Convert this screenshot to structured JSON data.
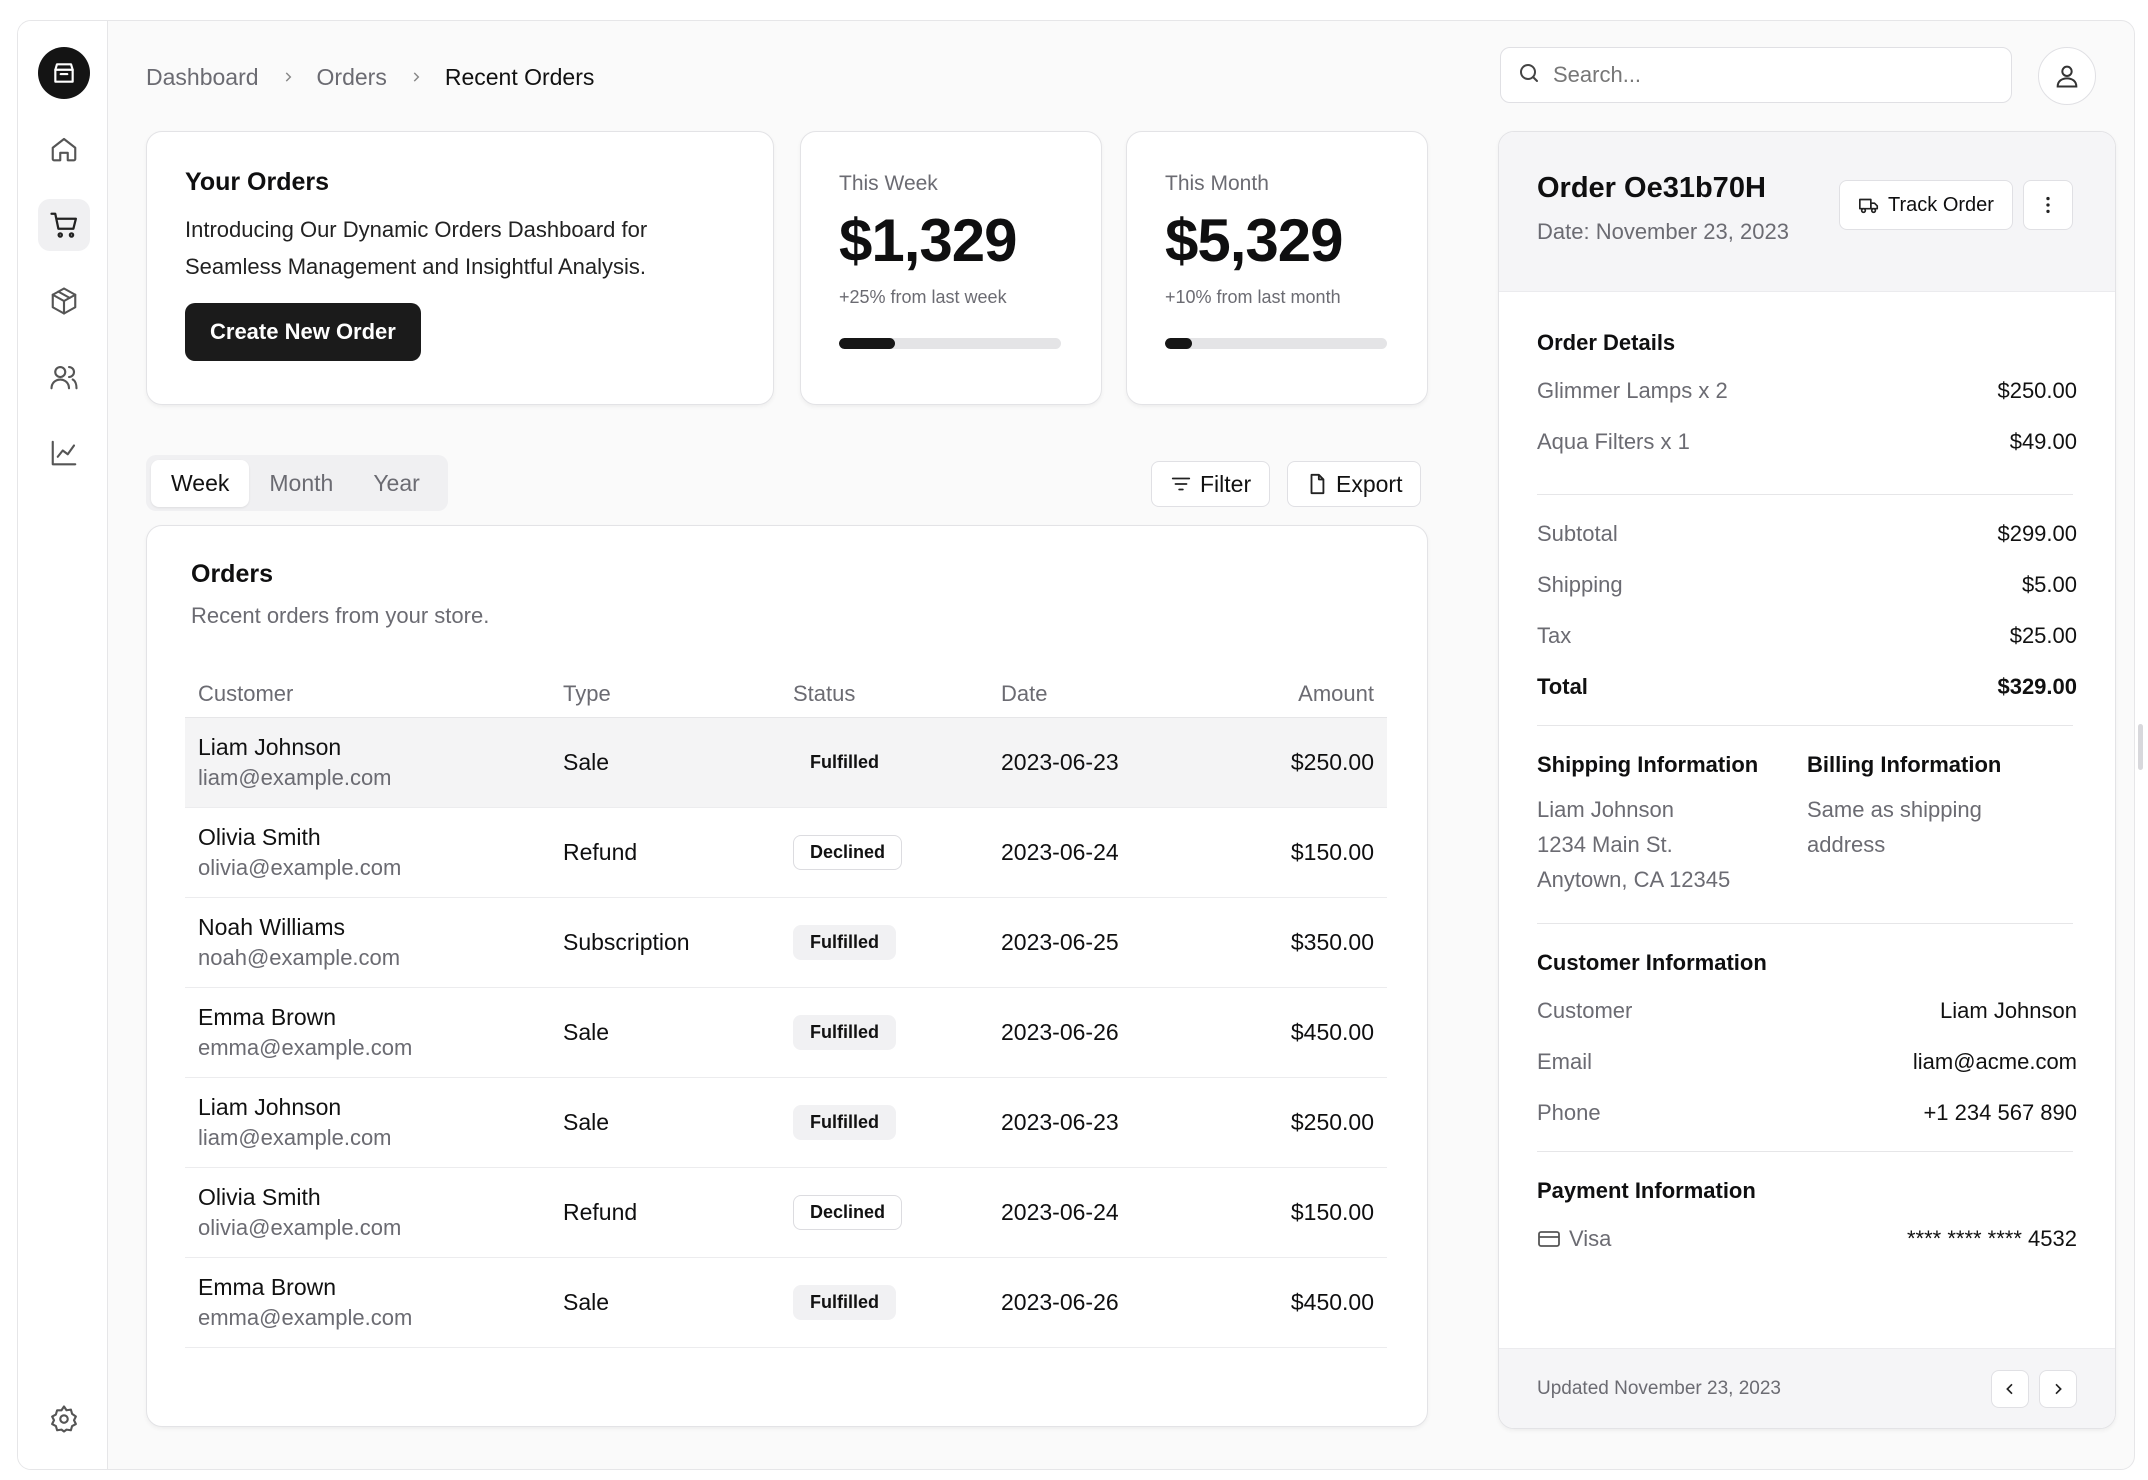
{
  "breadcrumb": [
    "Dashboard",
    "Orders",
    "Recent Orders"
  ],
  "search": {
    "placeholder": "Search..."
  },
  "sidebar": {
    "icons": [
      "store-icon",
      "home-icon",
      "cart-icon",
      "package-icon",
      "users-icon",
      "chart-icon",
      "settings-icon"
    ],
    "active": "cart-icon"
  },
  "intro": {
    "title": "Your Orders",
    "description": "Introducing Our Dynamic Orders Dashboard for Seamless Management and Insightful Analysis.",
    "button": "Create New Order"
  },
  "stats": [
    {
      "label": "This Week",
      "value": "$1,329",
      "change": "+25% from last week",
      "progress": 0.25
    },
    {
      "label": "This Month",
      "value": "$5,329",
      "change": "+10% from last month",
      "progress": 0.12
    }
  ],
  "tabs": [
    "Week",
    "Month",
    "Year"
  ],
  "active_tab": "Week",
  "actions": {
    "filter": "Filter",
    "export": "Export"
  },
  "orders": {
    "title": "Orders",
    "description": "Recent orders from your store.",
    "columns": [
      "Customer",
      "Type",
      "Status",
      "Date",
      "Amount"
    ],
    "rows": [
      {
        "name": "Liam Johnson",
        "email": "liam@example.com",
        "type": "Sale",
        "status": "Fulfilled",
        "date": "2023-06-23",
        "amount": "$250.00"
      },
      {
        "name": "Olivia Smith",
        "email": "olivia@example.com",
        "type": "Refund",
        "status": "Declined",
        "date": "2023-06-24",
        "amount": "$150.00"
      },
      {
        "name": "Noah Williams",
        "email": "noah@example.com",
        "type": "Subscription",
        "status": "Fulfilled",
        "date": "2023-06-25",
        "amount": "$350.00"
      },
      {
        "name": "Emma Brown",
        "email": "emma@example.com",
        "type": "Sale",
        "status": "Fulfilled",
        "date": "2023-06-26",
        "amount": "$450.00"
      },
      {
        "name": "Liam Johnson",
        "email": "liam@example.com",
        "type": "Sale",
        "status": "Fulfilled",
        "date": "2023-06-23",
        "amount": "$250.00"
      },
      {
        "name": "Olivia Smith",
        "email": "olivia@example.com",
        "type": "Refund",
        "status": "Declined",
        "date": "2023-06-24",
        "amount": "$150.00"
      },
      {
        "name": "Emma Brown",
        "email": "emma@example.com",
        "type": "Sale",
        "status": "Fulfilled",
        "date": "2023-06-26",
        "amount": "$450.00"
      }
    ]
  },
  "detail": {
    "title": "Order Oe31b70H",
    "date": "Date: November 23, 2023",
    "track": "Track Order",
    "order_details_title": "Order Details",
    "items": [
      {
        "k": "Glimmer Lamps x 2",
        "v": "$250.00"
      },
      {
        "k": "Aqua Filters x 1",
        "v": "$49.00"
      }
    ],
    "totals": [
      {
        "k": "Subtotal",
        "v": "$299.00"
      },
      {
        "k": "Shipping",
        "v": "$5.00"
      },
      {
        "k": "Tax",
        "v": "$25.00"
      },
      {
        "k": "Total",
        "v": "$329.00"
      }
    ],
    "shipping_title": "Shipping Information",
    "shipping_lines": [
      "Liam Johnson",
      "1234 Main St.",
      "Anytown, CA 12345"
    ],
    "billing_title": "Billing Information",
    "billing_text": "Same as shipping address",
    "customer_title": "Customer Information",
    "customer": [
      {
        "k": "Customer",
        "v": "Liam Johnson"
      },
      {
        "k": "Email",
        "v": "liam@acme.com"
      },
      {
        "k": "Phone",
        "v": "+1 234 567 890"
      }
    ],
    "payment_title": "Payment Information",
    "payment_method": "Visa",
    "payment_card": "**** **** **** 4532",
    "updated": "Updated November 23, 2023"
  }
}
